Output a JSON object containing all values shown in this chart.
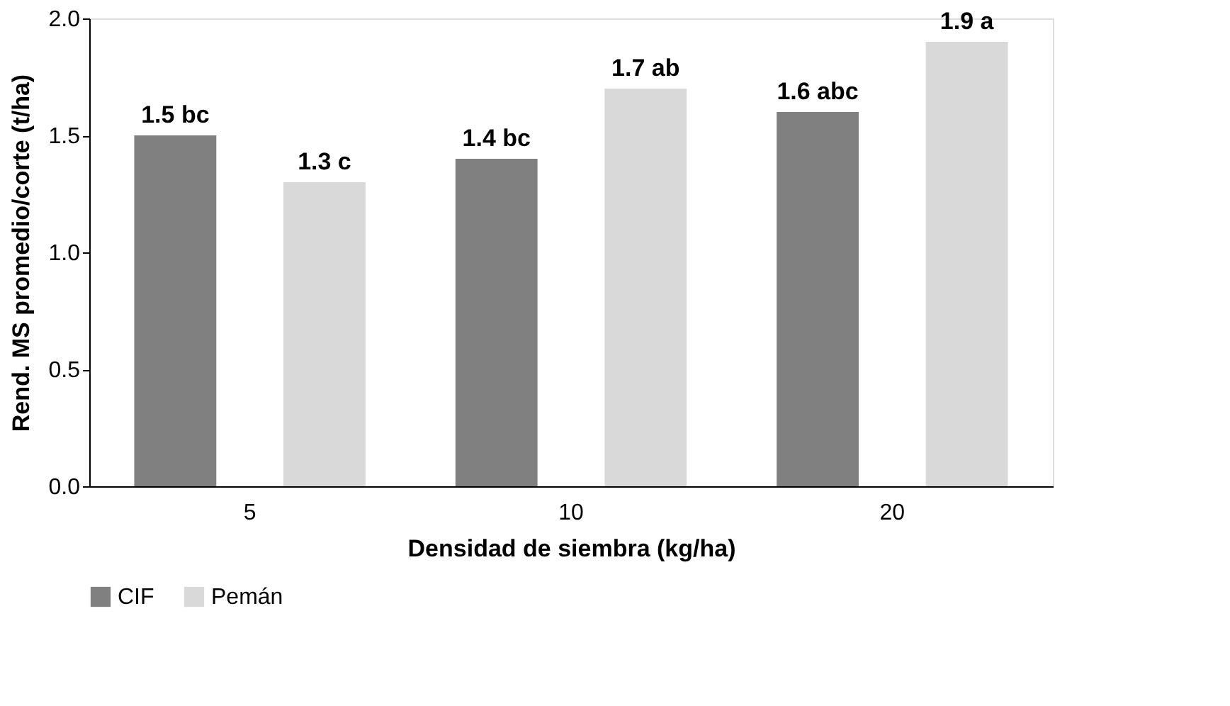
{
  "chart_data": {
    "type": "bar",
    "xlabel": "Densidad de siembra (kg/ha)",
    "ylabel": "Rend. MS promedio/corte  (t/ha)",
    "categories": [
      "5",
      "10",
      "20"
    ],
    "series": [
      {
        "name": "CIF",
        "color": "#808080",
        "values": [
          1.5,
          1.4,
          1.6
        ],
        "value_labels": [
          "1.5 bc",
          "1.4 bc",
          "1.6 abc"
        ]
      },
      {
        "name": "Pemán",
        "color": "#d9d9d9",
        "values": [
          1.3,
          1.7,
          1.9
        ],
        "value_labels": [
          "1.3 c",
          "1.7 ab",
          "1.9 a"
        ]
      }
    ],
    "ylim": [
      0,
      2
    ],
    "yticks": [
      {
        "value": 0,
        "label": "0.0"
      },
      {
        "value": 0.5,
        "label": "0.5"
      },
      {
        "value": 1,
        "label": "1.0"
      },
      {
        "value": 1.5,
        "label": "1.5"
      },
      {
        "value": 2,
        "label": "2.0"
      }
    ],
    "grid": false,
    "legend": "bottom"
  }
}
